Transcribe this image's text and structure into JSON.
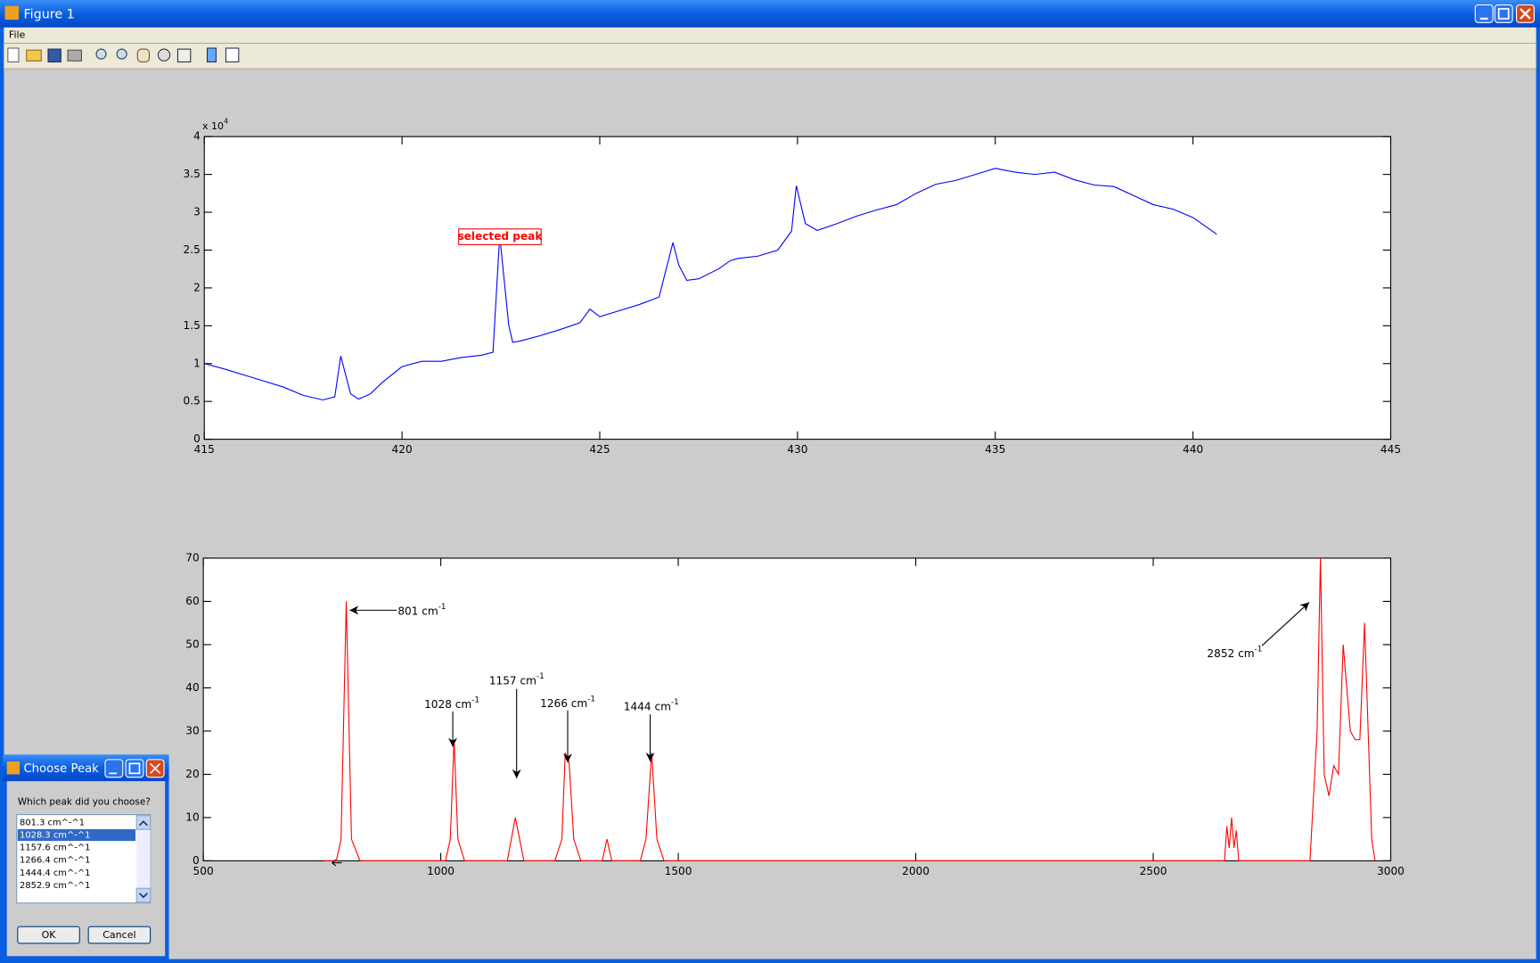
{
  "window": {
    "title": "Figure 1",
    "menu": [
      "File"
    ]
  },
  "chart_data": [
    {
      "type": "line",
      "color": "#0000ff",
      "xlim": [
        415,
        445
      ],
      "xticks": [
        415,
        420,
        425,
        430,
        435,
        440,
        445
      ],
      "ylim": [
        0,
        40000
      ],
      "yticks": [
        {
          "value": 0,
          "label": "0"
        },
        {
          "value": 5000,
          "label": "0.5"
        },
        {
          "value": 10000,
          "label": "1"
        },
        {
          "value": 15000,
          "label": "1.5"
        },
        {
          "value": 20000,
          "label": "2"
        },
        {
          "value": 25000,
          "label": "2.5"
        },
        {
          "value": 30000,
          "label": "3"
        },
        {
          "value": 35000,
          "label": "3.5"
        },
        {
          "value": 40000,
          "label": "4"
        }
      ],
      "y_scale_label": {
        "base": "x 10",
        "exponent": "4"
      },
      "annotations": [
        {
          "text": "selected peak",
          "color": "#ff0000"
        }
      ],
      "x": [
        415,
        415.5,
        416,
        416.5,
        417,
        417.5,
        418,
        418.3,
        418.45,
        418.7,
        418.9,
        419.2,
        419.5,
        420,
        420.5,
        421,
        421.5,
        422,
        422.3,
        422.47,
        422.7,
        422.8,
        423,
        423.5,
        424,
        424.5,
        424.75,
        425,
        425.5,
        426,
        426.5,
        426.85,
        427,
        427.2,
        427.5,
        428,
        428.3,
        428.5,
        429,
        429.5,
        429.85,
        429.97,
        430.2,
        430.5,
        431,
        431.5,
        432,
        432.5,
        433,
        433.5,
        434,
        434.5,
        435,
        435.5,
        436,
        436.5,
        437,
        437.5,
        438,
        438.5,
        439,
        439.5,
        440,
        440.6
      ],
      "values": [
        10000,
        9300,
        8500,
        7700,
        6900,
        5800,
        5200,
        5600,
        11000,
        6000,
        5300,
        6000,
        7500,
        9600,
        10300,
        10300,
        10800,
        11100,
        11500,
        26900,
        15000,
        12800,
        13000,
        13700,
        14500,
        15400,
        17200,
        16200,
        17000,
        17800,
        18800,
        26000,
        23000,
        21000,
        21200,
        22500,
        23600,
        23900,
        24200,
        25000,
        27500,
        33500,
        28500,
        27600,
        28500,
        29500,
        30300,
        31000,
        32500,
        33700,
        34200,
        35000,
        35800,
        35300,
        35000,
        35300,
        34300,
        33600,
        33400,
        32200,
        31000,
        30400,
        29300,
        27100
      ]
    },
    {
      "type": "line",
      "color": "#ff0000",
      "xlim": [
        500,
        3000
      ],
      "xticks": [
        500,
        1000,
        1500,
        2000,
        2500,
        3000
      ],
      "ylim": [
        0,
        70
      ],
      "yticks": [
        0,
        10,
        20,
        30,
        40,
        50,
        60,
        70
      ],
      "annotations": [
        {
          "base": "801 cm",
          "exponent": "-1"
        },
        {
          "base": "1028 cm",
          "exponent": "-1"
        },
        {
          "base": "1157 cm",
          "exponent": "-1"
        },
        {
          "base": "1266 cm",
          "exponent": "-1"
        },
        {
          "base": "1444 cm",
          "exponent": "-1"
        },
        {
          "base": "2852 cm",
          "exponent": "-1"
        }
      ],
      "x": [
        755,
        780,
        790,
        801,
        812,
        830,
        1010,
        1020,
        1028,
        1036,
        1050,
        1140,
        1157,
        1175,
        1240,
        1255,
        1262,
        1270,
        1280,
        1295,
        1340,
        1350,
        1360,
        1420,
        1432,
        1444,
        1455,
        1470,
        2650,
        2655,
        2660,
        2665,
        2670,
        2675,
        2680,
        2830,
        2845,
        2852,
        2860,
        2870,
        2880,
        2890,
        2900,
        2915,
        2925,
        2935,
        2945,
        2960,
        2967
      ],
      "values": [
        0,
        0,
        5,
        60,
        5,
        0,
        0,
        5,
        28,
        5,
        0,
        0,
        10,
        0,
        0,
        5,
        25,
        23,
        5,
        0,
        0,
        5,
        0,
        0,
        5,
        25,
        5,
        0,
        0,
        8,
        3,
        10,
        3,
        7,
        0,
        0,
        30,
        70,
        20,
        15,
        22,
        20,
        50,
        30,
        28,
        28,
        55,
        5,
        0
      ]
    }
  ],
  "dialog": {
    "title": "Choose Peak",
    "prompt": "Which peak did you choose?",
    "options": [
      "801.3 cm^-^1",
      "1028.3 cm^-^1",
      "1157.6 cm^-^1",
      "1266.4 cm^-^1",
      "1444.4 cm^-^1",
      "2852.9 cm^-^1"
    ],
    "selected": 1,
    "buttons": [
      "OK",
      "Cancel"
    ]
  }
}
